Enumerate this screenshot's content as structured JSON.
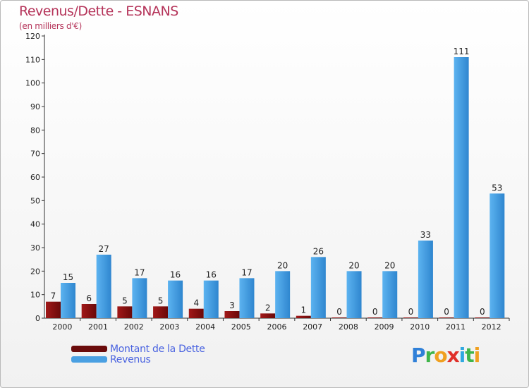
{
  "chart_data": {
    "type": "bar",
    "title": "Revenus/Dette - ESNANS",
    "subtitle": "(en milliers d'€)",
    "categories": [
      "2000",
      "2001",
      "2002",
      "2003",
      "2004",
      "2005",
      "2006",
      "2007",
      "2008",
      "2009",
      "2010",
      "2011",
      "2012"
    ],
    "series": [
      {
        "name": "Montant de la Dette",
        "color": "#8a1212",
        "values": [
          7,
          6,
          5,
          5,
          4,
          3,
          2,
          1,
          0,
          0,
          0,
          0,
          0
        ]
      },
      {
        "name": "Revenus",
        "color": "#4aa0e2",
        "values": [
          15,
          27,
          17,
          16,
          16,
          17,
          20,
          26,
          20,
          20,
          33,
          111,
          53
        ]
      }
    ],
    "yticks": [
      0,
      10,
      20,
      30,
      40,
      50,
      60,
      70,
      80,
      90,
      100,
      110,
      120
    ],
    "ylim": [
      0,
      120
    ],
    "grid": false,
    "legend_position": "bottom-left"
  },
  "logo": {
    "letters": [
      "P",
      "r",
      "o",
      "x",
      "i",
      "t",
      "i"
    ]
  }
}
